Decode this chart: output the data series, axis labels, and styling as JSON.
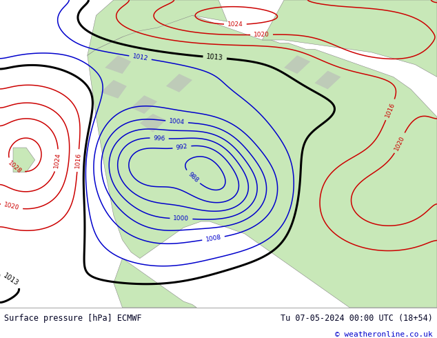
{
  "title_left": "Surface pressure [hPa] ECMWF",
  "title_right": "Tu 07-05-2024 00:00 UTC (18+54)",
  "copyright": "© weatheronline.co.uk",
  "bg_color": "#e0e0e0",
  "ocean_color": "#d8dde8",
  "land_color": "#c8e8b8",
  "terrain_color": "#b8b8b8",
  "blue_contour": "#0000cc",
  "red_contour": "#cc0000",
  "black_contour": "#000000",
  "figsize": [
    6.34,
    4.9
  ],
  "dpi": 100,
  "footer_bg": "#ffffff",
  "blue_label_color": "#0000cc",
  "label_fontsize": 6.5
}
